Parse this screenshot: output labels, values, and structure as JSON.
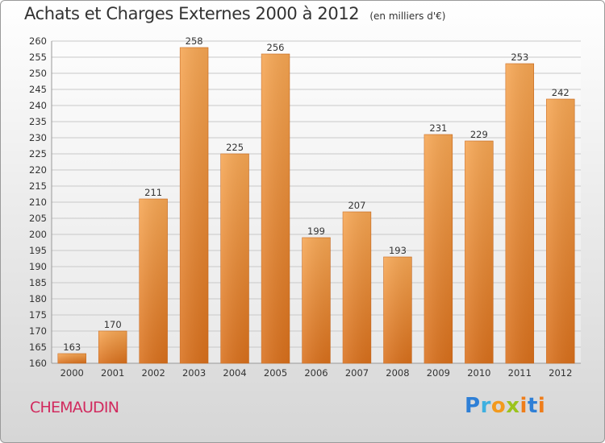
{
  "title": "Achats et Charges Externes 2000 à 2012",
  "subtitle": "(en milliers d'€)",
  "place": "CHEMAUDIN",
  "logo": {
    "p": "P",
    "r": "r",
    "o": "o",
    "x": "x",
    "i": "i",
    "t": "t",
    "i2": "i"
  },
  "chart_data": {
    "type": "bar",
    "title": "Achats et Charges Externes 2000 à 2012",
    "subtitle": "(en milliers d'€)",
    "xlabel": "",
    "ylabel": "",
    "categories": [
      "2000",
      "2001",
      "2002",
      "2003",
      "2004",
      "2005",
      "2006",
      "2007",
      "2008",
      "2009",
      "2010",
      "2011",
      "2012"
    ],
    "values": [
      163,
      170,
      211,
      258,
      225,
      256,
      199,
      207,
      193,
      231,
      229,
      253,
      242
    ],
    "ylim": [
      160,
      260
    ],
    "yticks": [
      160,
      165,
      170,
      175,
      180,
      185,
      190,
      195,
      200,
      205,
      210,
      215,
      220,
      225,
      230,
      235,
      240,
      245,
      250,
      255,
      260
    ],
    "grid": true,
    "legend": "none",
    "bar_color": "#f0903a"
  }
}
